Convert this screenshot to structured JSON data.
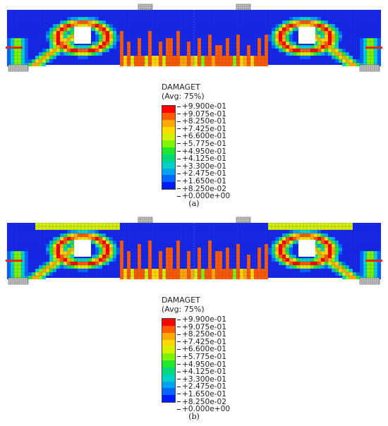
{
  "panels": [
    {
      "id": "a",
      "caption": "(a)",
      "legend_title": "DAMAGET",
      "legend_subtitle": "(Avg: 75%)",
      "legend_values": [
        "+9.900e-01",
        "+9.075e-01",
        "+8.250e-01",
        "+7.425e-01",
        "+6.600e-01",
        "+5.775e-01",
        "+4.950e-01",
        "+4.125e-01",
        "+3.300e-01",
        "+2.475e-01",
        "+1.650e-01",
        "+8.250e-02",
        "+0.000e+00"
      ]
    },
    {
      "id": "b",
      "caption": "(b)",
      "legend_title": "DAMAGET",
      "legend_subtitle": "(Avg: 75%)",
      "legend_values": [
        "+9.900e-01",
        "+9.075e-01",
        "+8.250e-01",
        "+7.425e-01",
        "+6.600e-01",
        "+5.775e-01",
        "+4.950e-01",
        "+4.125e-01",
        "+3.300e-01",
        "+2.475e-01",
        "+1.650e-01",
        "+8.250e-02",
        "+0.000e+00"
      ]
    }
  ],
  "colors": {
    "scale_top_to_bottom": [
      "#ff0000",
      "#ff5a00",
      "#ffaa00",
      "#ffd900",
      "#d4f000",
      "#7ef500",
      "#1fe82f",
      "#00d97a",
      "#00d2c6",
      "#00a4ef",
      "#0066ff",
      "#0019ff"
    ],
    "beam_background": "#1628e6",
    "mesh_line": "#0f1fa8",
    "support_plate": "#9a9a9a"
  }
}
